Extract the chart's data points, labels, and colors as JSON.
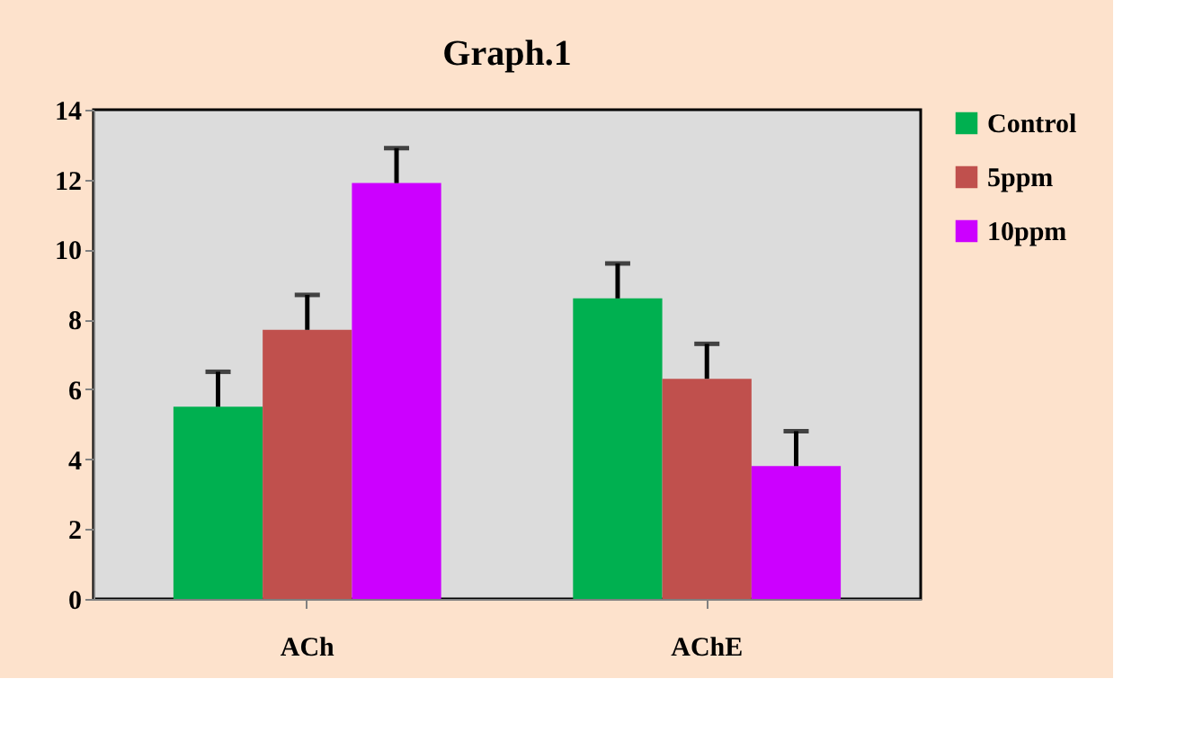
{
  "chart_data": {
    "type": "bar",
    "title": "Graph.1",
    "categories": [
      "ACh",
      "AChE"
    ],
    "series": [
      {
        "name": "Control",
        "color": "#00b050",
        "values": [
          5.5,
          8.6
        ],
        "errors": [
          [
            5.5,
            6.5
          ],
          [
            8.6,
            9.6
          ]
        ]
      },
      {
        "name": "5ppm",
        "color": "#c0504d",
        "values": [
          7.7,
          6.3
        ],
        "errors": [
          [
            7.7,
            8.7
          ],
          [
            6.3,
            7.3
          ]
        ]
      },
      {
        "name": "10ppm",
        "color": "#cc00ff",
        "values": [
          11.9,
          3.8
        ],
        "errors": [
          [
            11.9,
            12.9
          ],
          [
            3.8,
            4.8
          ]
        ]
      }
    ],
    "ylim": [
      0,
      14
    ],
    "yticks": [
      0,
      2,
      4,
      6,
      8,
      10,
      12,
      14
    ],
    "grid": false,
    "legend": "right"
  }
}
